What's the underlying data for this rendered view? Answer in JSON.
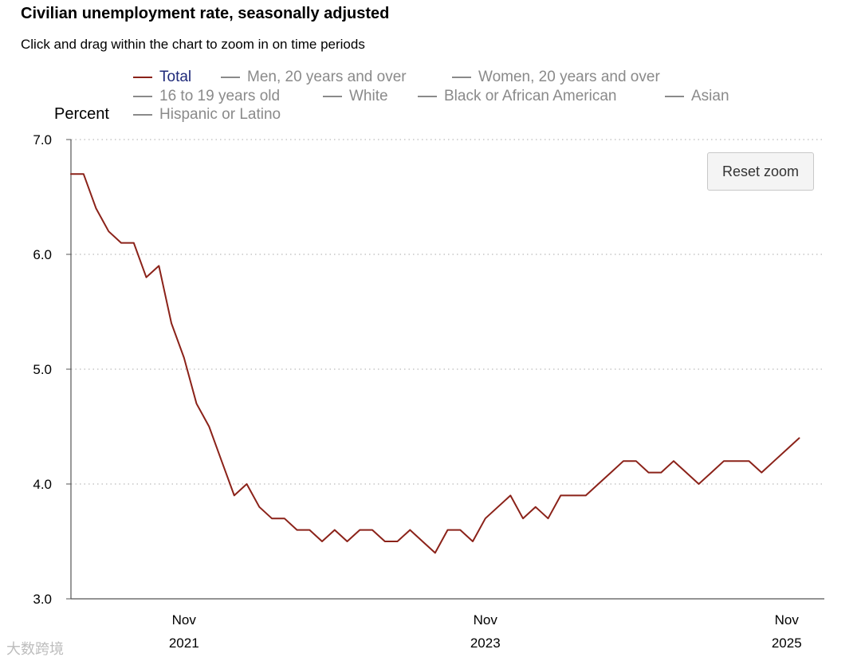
{
  "title": "Civilian unemployment rate, seasonally adjusted",
  "subtitle": "Click and drag within the chart to zoom in on time periods",
  "reset_zoom_label": "Reset zoom",
  "watermark": "大数跨境",
  "colors": {
    "series": "#8b2219",
    "active_legend_text": "#1f2a7a",
    "inactive": "#8a8a8a",
    "grid": "#bbbbbb"
  },
  "chart_data": {
    "type": "line",
    "title": "Civilian unemployment rate, seasonally adjusted",
    "ylabel": "Percent",
    "xlabel": "",
    "ylim": [
      3.0,
      7.0
    ],
    "yticks": [
      "7.0",
      "6.0",
      "5.0",
      "4.0",
      "3.0"
    ],
    "xticks": [
      {
        "month": "Nov",
        "year": "2021"
      },
      {
        "month": "Nov",
        "year": "2023"
      },
      {
        "month": "Nov",
        "year": "2025"
      }
    ],
    "legend": [
      {
        "name": "Total",
        "active": true
      },
      {
        "name": "Men, 20 years and over",
        "active": false
      },
      {
        "name": "Women, 20 years and over",
        "active": false
      },
      {
        "name": "16 to 19 years old",
        "active": false
      },
      {
        "name": "White",
        "active": false
      },
      {
        "name": "Black or African American",
        "active": false
      },
      {
        "name": "Asian",
        "active": false
      },
      {
        "name": "Hispanic or Latino",
        "active": false
      }
    ],
    "series": [
      {
        "name": "Total",
        "start": "2021-02",
        "values": [
          6.7,
          6.7,
          6.4,
          6.2,
          6.1,
          6.1,
          5.8,
          5.9,
          5.4,
          5.1,
          4.7,
          4.5,
          4.2,
          3.9,
          4.0,
          3.8,
          3.7,
          3.7,
          3.6,
          3.6,
          3.5,
          3.6,
          3.5,
          3.6,
          3.6,
          3.5,
          3.5,
          3.6,
          3.5,
          3.4,
          3.6,
          3.6,
          3.5,
          3.7,
          3.8,
          3.9,
          3.7,
          3.8,
          3.7,
          3.9,
          3.9,
          3.9,
          4.0,
          4.1,
          4.2,
          4.2,
          4.1,
          4.1,
          4.2,
          4.1,
          4.0,
          4.1,
          4.2,
          4.2,
          4.2,
          4.1,
          4.2,
          4.3,
          4.4
        ]
      }
    ]
  }
}
